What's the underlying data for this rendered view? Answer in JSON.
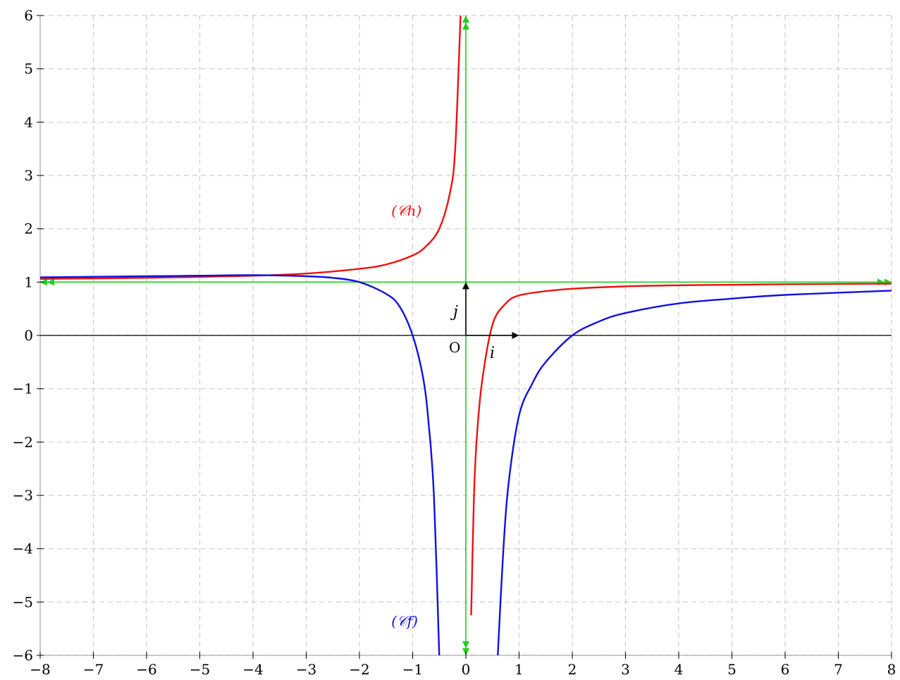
{
  "chart_data": {
    "type": "line",
    "xlim": [
      -8,
      8
    ],
    "ylim": [
      -6,
      6
    ],
    "grid": true,
    "x_ticks": [
      -8,
      -7,
      -6,
      -5,
      -4,
      -3,
      -2,
      -1,
      0,
      1,
      2,
      3,
      4,
      5,
      6,
      7,
      8
    ],
    "y_ticks": [
      -6,
      -5,
      -4,
      -3,
      -2,
      -1,
      0,
      1,
      2,
      3,
      4,
      5,
      6
    ],
    "x_tick_labels": [
      "−8",
      "−7",
      "−6",
      "−5",
      "−4",
      "−3",
      "−2",
      "−1",
      "0",
      "1",
      "2",
      "3",
      "4",
      "5",
      "6",
      "7",
      "8"
    ],
    "y_tick_labels": [
      "−6",
      "−5",
      "−4",
      "−3",
      "−2",
      "−1",
      "0",
      "1",
      "2",
      "3",
      "4",
      "5",
      "6"
    ],
    "origin_label": "O",
    "vector_i_label": "i",
    "vector_j_label": "j",
    "asymptotes": {
      "horizontal_y": 1,
      "vertical_x": 0,
      "color": "#22cc22"
    },
    "series": [
      {
        "name": "(𝒞h)",
        "color": "#ee1111",
        "x": [
          -8,
          -6,
          -4,
          -3,
          -2,
          -1.5,
          -1,
          -0.75,
          -0.5,
          -0.3,
          -0.2,
          -0.1,
          0.1,
          0.15,
          0.2,
          0.3,
          0.5,
          0.75,
          1,
          1.5,
          2,
          3,
          4,
          5,
          6,
          8
        ],
        "y": [
          1.06,
          1.08,
          1.12,
          1.16,
          1.25,
          1.33,
          1.5,
          1.67,
          2.0,
          2.67,
          3.5,
          6.0,
          -5.25,
          -3.1,
          -2.0,
          -0.9,
          0.2,
          0.6,
          0.75,
          0.83,
          0.875,
          0.92,
          0.94,
          0.95,
          0.96,
          0.97
        ]
      },
      {
        "name": "(𝒞f)",
        "color": "#1111dd",
        "x": [
          -8,
          -6,
          -5,
          -4,
          -3,
          -2.5,
          -2,
          -1.5,
          -1.25,
          -1,
          -0.8,
          -0.7,
          -0.6,
          -0.5,
          0.6,
          0.7,
          0.8,
          1,
          1.25,
          1.5,
          2,
          2.5,
          3,
          4,
          5,
          6,
          8
        ],
        "y": [
          1.09,
          1.11,
          1.12,
          1.13,
          1.11,
          1.08,
          1.0,
          0.78,
          0.55,
          0.0,
          -0.81,
          -1.65,
          -3.0,
          -6.0,
          -6.0,
          -4.1,
          -2.8,
          -1.5,
          -0.9,
          -0.5,
          0.0,
          0.26,
          0.42,
          0.6,
          0.69,
          0.76,
          0.84
        ]
      }
    ]
  }
}
